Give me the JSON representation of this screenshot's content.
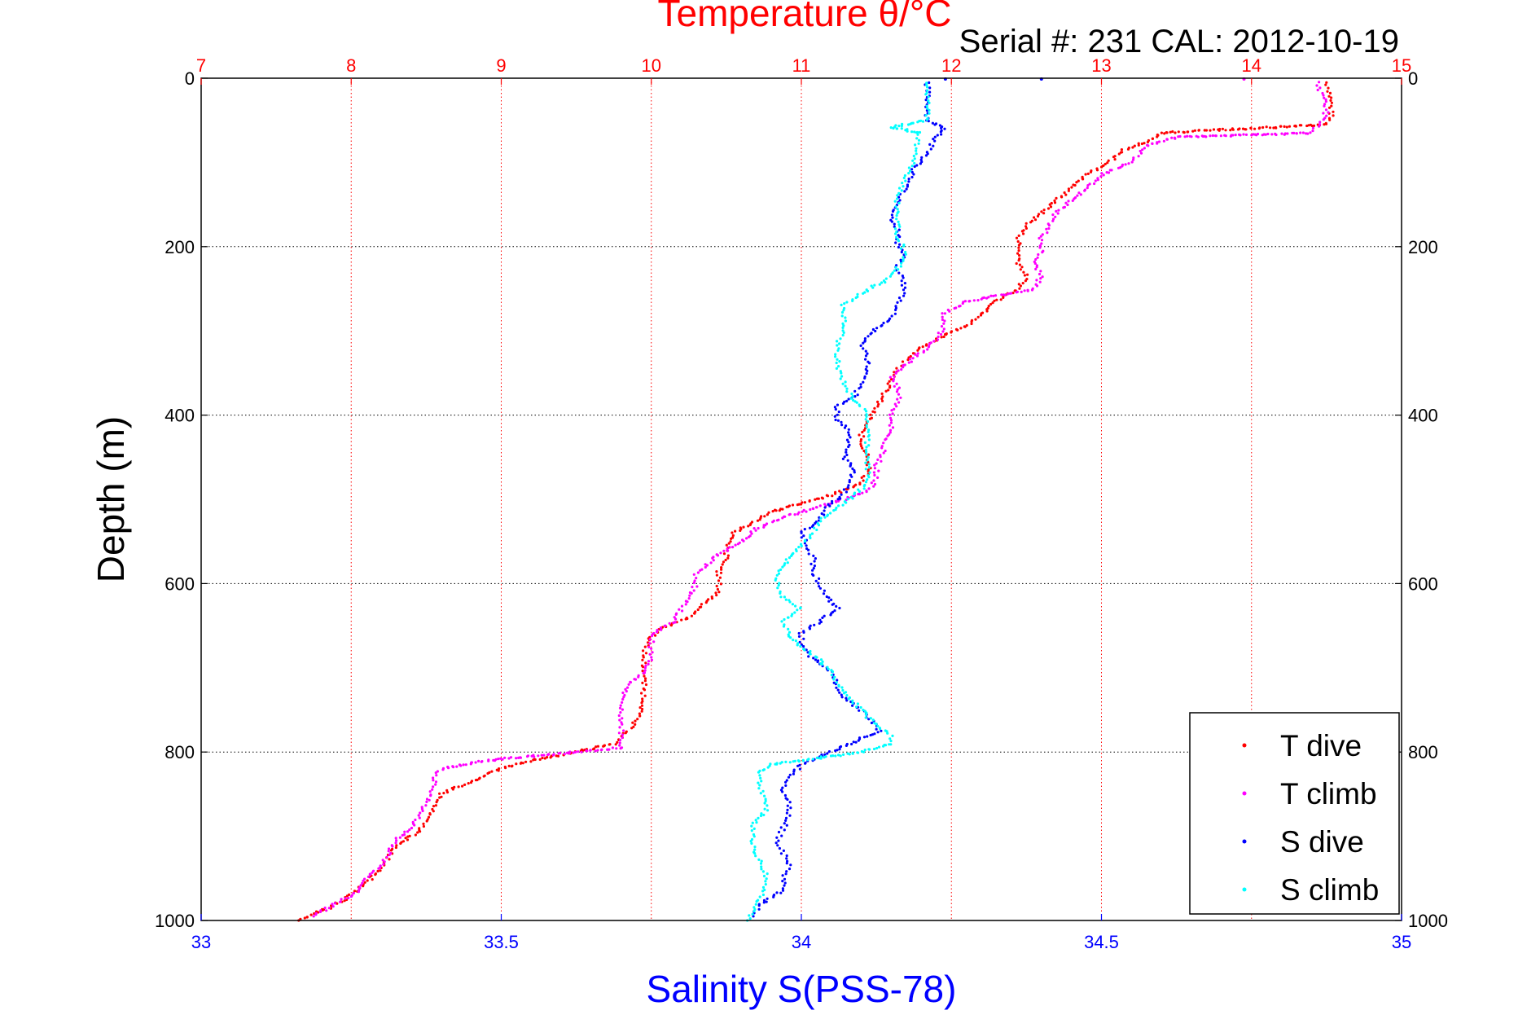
{
  "chart_data": {
    "type": "scatter",
    "title": "Temperature θ/°C",
    "subtitle": "Serial #: 231   CAL: 2012-10-19",
    "ylabel": "Depth (m)",
    "xlabel_bottom": "Salinity S(PSS-78)",
    "y_axis": {
      "range": [
        0,
        1000
      ],
      "reversed": true,
      "ticks": [
        0,
        200,
        400,
        600,
        800,
        1000
      ],
      "tick_labels": [
        "0",
        "200",
        "400",
        "600",
        "800",
        "1000"
      ]
    },
    "x_top_temperature": {
      "range": [
        7,
        15
      ],
      "ticks": [
        7,
        8,
        9,
        10,
        11,
        12,
        13,
        14,
        15
      ],
      "tick_labels": [
        "7",
        "8",
        "9",
        "10",
        "11",
        "12",
        "13",
        "14",
        "15"
      ]
    },
    "x_bottom_salinity": {
      "range": [
        33,
        35
      ],
      "ticks": [
        33,
        33.5,
        34,
        34.5,
        35
      ],
      "tick_labels": [
        "33",
        "33.5",
        "34",
        "34.5",
        "35"
      ]
    },
    "grid": true,
    "legend_position": "bottom-right",
    "colors": {
      "temperature_axis": "#ff0000",
      "salinity_axis": "#0000ff",
      "grid": "#000000"
    },
    "series": [
      {
        "name": "T dive",
        "axis": "temperature",
        "color": "#ff0000",
        "points": [
          [
            5,
            14.5
          ],
          [
            15,
            14.52
          ],
          [
            30,
            14.53
          ],
          [
            45,
            14.53
          ],
          [
            55,
            14.5
          ],
          [
            65,
            13.4
          ],
          [
            75,
            13.3
          ],
          [
            85,
            13.15
          ],
          [
            100,
            13.05
          ],
          [
            115,
            12.9
          ],
          [
            130,
            12.8
          ],
          [
            145,
            12.7
          ],
          [
            160,
            12.6
          ],
          [
            175,
            12.5
          ],
          [
            190,
            12.45
          ],
          [
            205,
            12.45
          ],
          [
            220,
            12.45
          ],
          [
            235,
            12.5
          ],
          [
            250,
            12.45
          ],
          [
            265,
            12.3
          ],
          [
            280,
            12.2
          ],
          [
            295,
            12.1
          ],
          [
            305,
            11.95
          ],
          [
            320,
            11.8
          ],
          [
            335,
            11.7
          ],
          [
            345,
            11.65
          ],
          [
            360,
            11.6
          ],
          [
            375,
            11.55
          ],
          [
            390,
            11.5
          ],
          [
            405,
            11.45
          ],
          [
            420,
            11.4
          ],
          [
            435,
            11.4
          ],
          [
            450,
            11.45
          ],
          [
            465,
            11.45
          ],
          [
            480,
            11.4
          ],
          [
            495,
            11.2
          ],
          [
            505,
            11.0
          ],
          [
            515,
            10.8
          ],
          [
            525,
            10.7
          ],
          [
            540,
            10.55
          ],
          [
            555,
            10.5
          ],
          [
            570,
            10.5
          ],
          [
            585,
            10.45
          ],
          [
            600,
            10.45
          ],
          [
            610,
            10.45
          ],
          [
            625,
            10.35
          ],
          [
            640,
            10.25
          ],
          [
            655,
            10.05
          ],
          [
            670,
            9.97
          ],
          [
            685,
            9.95
          ],
          [
            700,
            9.95
          ],
          [
            715,
            9.95
          ],
          [
            730,
            9.95
          ],
          [
            745,
            9.95
          ],
          [
            760,
            9.9
          ],
          [
            775,
            9.85
          ],
          [
            790,
            9.75
          ],
          [
            800,
            9.5
          ],
          [
            810,
            9.2
          ],
          [
            820,
            9.0
          ],
          [
            835,
            8.8
          ],
          [
            850,
            8.6
          ],
          [
            865,
            8.55
          ],
          [
            880,
            8.5
          ],
          [
            895,
            8.45
          ],
          [
            910,
            8.3
          ],
          [
            925,
            8.25
          ],
          [
            940,
            8.2
          ],
          [
            955,
            8.1
          ],
          [
            970,
            8.0
          ],
          [
            985,
            7.85
          ],
          [
            1000,
            7.65
          ]
        ]
      },
      {
        "name": "T climb",
        "axis": "temperature",
        "color": "#ff00ff",
        "points": [
          [
            5,
            14.45
          ],
          [
            15,
            14.45
          ],
          [
            25,
            14.5
          ],
          [
            40,
            14.5
          ],
          [
            55,
            14.45
          ],
          [
            65,
            14.4
          ],
          [
            70,
            13.5
          ],
          [
            80,
            13.3
          ],
          [
            90,
            13.25
          ],
          [
            100,
            13.2
          ],
          [
            115,
            13.0
          ],
          [
            130,
            12.9
          ],
          [
            145,
            12.8
          ],
          [
            160,
            12.7
          ],
          [
            175,
            12.65
          ],
          [
            190,
            12.6
          ],
          [
            205,
            12.6
          ],
          [
            220,
            12.55
          ],
          [
            235,
            12.6
          ],
          [
            250,
            12.55
          ],
          [
            265,
            12.1
          ],
          [
            280,
            11.95
          ],
          [
            295,
            11.95
          ],
          [
            310,
            11.9
          ],
          [
            325,
            11.8
          ],
          [
            340,
            11.7
          ],
          [
            355,
            11.6
          ],
          [
            370,
            11.65
          ],
          [
            385,
            11.65
          ],
          [
            400,
            11.6
          ],
          [
            415,
            11.6
          ],
          [
            430,
            11.55
          ],
          [
            445,
            11.55
          ],
          [
            460,
            11.5
          ],
          [
            475,
            11.5
          ],
          [
            490,
            11.45
          ],
          [
            505,
            11.2
          ],
          [
            520,
            10.9
          ],
          [
            535,
            10.7
          ],
          [
            550,
            10.6
          ],
          [
            565,
            10.45
          ],
          [
            580,
            10.35
          ],
          [
            590,
            10.3
          ],
          [
            600,
            10.3
          ],
          [
            615,
            10.25
          ],
          [
            630,
            10.2
          ],
          [
            645,
            10.15
          ],
          [
            660,
            10.0
          ],
          [
            675,
            10.0
          ],
          [
            690,
            10.0
          ],
          [
            705,
            9.95
          ],
          [
            720,
            9.85
          ],
          [
            735,
            9.8
          ],
          [
            750,
            9.8
          ],
          [
            765,
            9.8
          ],
          [
            780,
            9.8
          ],
          [
            795,
            9.8
          ],
          [
            810,
            8.9
          ],
          [
            820,
            8.6
          ],
          [
            830,
            8.55
          ],
          [
            845,
            8.55
          ],
          [
            860,
            8.5
          ],
          [
            875,
            8.45
          ],
          [
            890,
            8.4
          ],
          [
            905,
            8.3
          ],
          [
            920,
            8.25
          ],
          [
            935,
            8.2
          ],
          [
            950,
            8.1
          ],
          [
            965,
            8.05
          ],
          [
            980,
            7.9
          ],
          [
            995,
            7.75
          ]
        ]
      },
      {
        "name": "S dive",
        "axis": "salinity",
        "color": "#0000ff",
        "points": [
          [
            5,
            34.21
          ],
          [
            20,
            34.21
          ],
          [
            35,
            34.21
          ],
          [
            50,
            34.21
          ],
          [
            60,
            34.24
          ],
          [
            75,
            34.22
          ],
          [
            90,
            34.21
          ],
          [
            105,
            34.19
          ],
          [
            120,
            34.18
          ],
          [
            135,
            34.17
          ],
          [
            150,
            34.16
          ],
          [
            165,
            34.15
          ],
          [
            180,
            34.16
          ],
          [
            195,
            34.16
          ],
          [
            210,
            34.17
          ],
          [
            225,
            34.16
          ],
          [
            240,
            34.17
          ],
          [
            255,
            34.17
          ],
          [
            270,
            34.16
          ],
          [
            285,
            34.15
          ],
          [
            300,
            34.12
          ],
          [
            315,
            34.1
          ],
          [
            330,
            34.11
          ],
          [
            345,
            34.11
          ],
          [
            360,
            34.1
          ],
          [
            375,
            34.09
          ],
          [
            390,
            34.06
          ],
          [
            405,
            34.06
          ],
          [
            420,
            34.08
          ],
          [
            435,
            34.08
          ],
          [
            450,
            34.07
          ],
          [
            465,
            34.09
          ],
          [
            480,
            34.08
          ],
          [
            495,
            34.07
          ],
          [
            510,
            34.04
          ],
          [
            525,
            34.03
          ],
          [
            540,
            34.0
          ],
          [
            555,
            34.01
          ],
          [
            570,
            34.02
          ],
          [
            585,
            34.02
          ],
          [
            600,
            34.03
          ],
          [
            615,
            34.04
          ],
          [
            630,
            34.06
          ],
          [
            645,
            34.03
          ],
          [
            660,
            34.0
          ],
          [
            675,
            34.0
          ],
          [
            690,
            34.02
          ],
          [
            705,
            34.05
          ],
          [
            720,
            34.06
          ],
          [
            735,
            34.07
          ],
          [
            750,
            34.1
          ],
          [
            765,
            34.12
          ],
          [
            775,
            34.13
          ],
          [
            790,
            34.08
          ],
          [
            800,
            34.05
          ],
          [
            815,
            34.0
          ],
          [
            830,
            33.98
          ],
          [
            845,
            33.97
          ],
          [
            860,
            33.98
          ],
          [
            875,
            33.98
          ],
          [
            890,
            33.97
          ],
          [
            905,
            33.96
          ],
          [
            920,
            33.97
          ],
          [
            935,
            33.98
          ],
          [
            950,
            33.97
          ],
          [
            965,
            33.97
          ],
          [
            980,
            33.93
          ],
          [
            995,
            33.92
          ]
        ]
      },
      {
        "name": "S climb",
        "axis": "salinity",
        "color": "#00ffff",
        "points": [
          [
            5,
            34.21
          ],
          [
            20,
            34.21
          ],
          [
            35,
            34.21
          ],
          [
            50,
            34.21
          ],
          [
            58,
            34.15
          ],
          [
            65,
            34.2
          ],
          [
            80,
            34.19
          ],
          [
            95,
            34.19
          ],
          [
            110,
            34.18
          ],
          [
            125,
            34.17
          ],
          [
            140,
            34.16
          ],
          [
            155,
            34.16
          ],
          [
            170,
            34.16
          ],
          [
            185,
            34.16
          ],
          [
            200,
            34.17
          ],
          [
            215,
            34.17
          ],
          [
            225,
            34.16
          ],
          [
            240,
            34.14
          ],
          [
            255,
            34.1
          ],
          [
            270,
            34.07
          ],
          [
            285,
            34.07
          ],
          [
            300,
            34.07
          ],
          [
            315,
            34.06
          ],
          [
            330,
            34.06
          ],
          [
            345,
            34.06
          ],
          [
            360,
            34.07
          ],
          [
            375,
            34.08
          ],
          [
            390,
            34.1
          ],
          [
            405,
            34.11
          ],
          [
            420,
            34.11
          ],
          [
            435,
            34.11
          ],
          [
            450,
            34.11
          ],
          [
            465,
            34.11
          ],
          [
            480,
            34.11
          ],
          [
            495,
            34.09
          ],
          [
            510,
            34.06
          ],
          [
            525,
            34.03
          ],
          [
            540,
            34.02
          ],
          [
            555,
            34.0
          ],
          [
            570,
            33.98
          ],
          [
            585,
            33.96
          ],
          [
            600,
            33.96
          ],
          [
            615,
            33.97
          ],
          [
            630,
            34.0
          ],
          [
            645,
            33.97
          ],
          [
            660,
            33.98
          ],
          [
            675,
            34.0
          ],
          [
            690,
            34.03
          ],
          [
            705,
            34.05
          ],
          [
            720,
            34.06
          ],
          [
            735,
            34.08
          ],
          [
            750,
            34.1
          ],
          [
            765,
            34.12
          ],
          [
            780,
            34.15
          ],
          [
            790,
            34.15
          ],
          [
            800,
            34.1
          ],
          [
            815,
            33.95
          ],
          [
            825,
            33.93
          ],
          [
            840,
            33.93
          ],
          [
            855,
            33.94
          ],
          [
            870,
            33.94
          ],
          [
            885,
            33.92
          ],
          [
            900,
            33.92
          ],
          [
            915,
            33.92
          ],
          [
            930,
            33.93
          ],
          [
            945,
            33.94
          ],
          [
            960,
            33.94
          ],
          [
            975,
            33.93
          ],
          [
            990,
            33.92
          ],
          [
            1000,
            33.91
          ]
        ]
      }
    ],
    "extra_marks": {
      "surface_markers": [
        {
          "axis": "temperature",
          "color": "#ff00ff",
          "x": 13.95,
          "y": 1
        },
        {
          "axis": "salinity",
          "color": "#0000ff",
          "x": 34.4,
          "y": 1
        },
        {
          "axis": "salinity",
          "color": "#0000ff",
          "x": 34.24,
          "y": 1
        }
      ]
    }
  }
}
